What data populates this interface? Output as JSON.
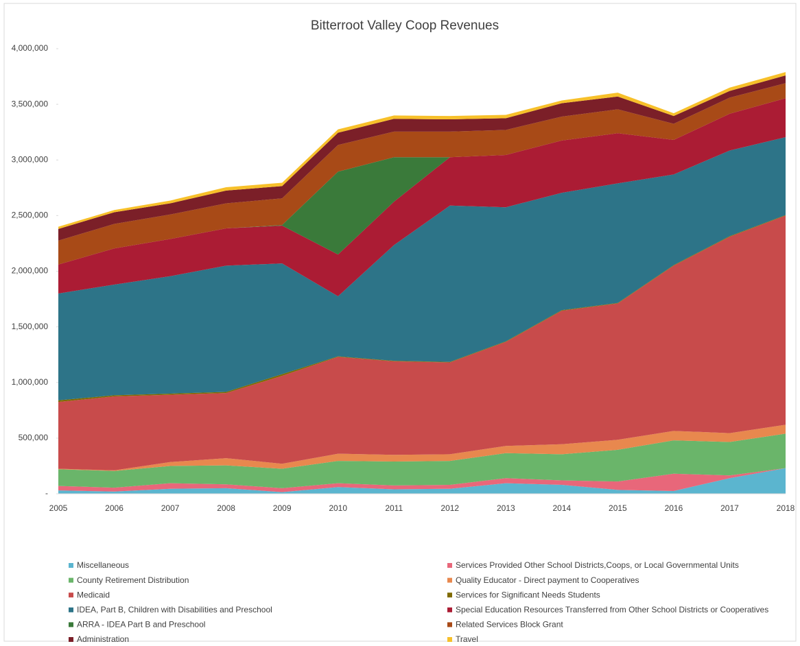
{
  "chart_data": {
    "type": "stacked_area",
    "title": "Bitterroot Valley Coop Revenues",
    "categories": [
      "2005",
      "2006",
      "2007",
      "2008",
      "2009",
      "2010",
      "2011",
      "2012",
      "2013",
      "2014",
      "2015",
      "2016",
      "2017",
      "2018"
    ],
    "ylim": [
      0,
      4000000
    ],
    "yticks": [
      {
        "value": 0,
        "label": "-"
      },
      {
        "value": 500000,
        "label": "500,000"
      },
      {
        "value": 1000000,
        "label": "1,000,000"
      },
      {
        "value": 1500000,
        "label": "1,500,000"
      },
      {
        "value": 2000000,
        "label": "2,000,000"
      },
      {
        "value": 2500000,
        "label": "2,500,000"
      },
      {
        "value": 3000000,
        "label": "3,000,000"
      },
      {
        "value": 3500000,
        "label": "3,500,000"
      },
      {
        "value": 4000000,
        "label": "4,000,000"
      }
    ],
    "legend": "bottom",
    "series": [
      {
        "name": "Miscellaneous",
        "color": "#5bb5cf",
        "values": [
          30000,
          20000,
          45000,
          50000,
          15000,
          60000,
          40000,
          45000,
          95000,
          80000,
          35000,
          25000,
          140000,
          230000
        ]
      },
      {
        "name": "Services Provided Other School Districts,Coops, or Local Governmental Units",
        "color": "#e8677a",
        "values": [
          40000,
          35000,
          50000,
          35000,
          35000,
          35000,
          35000,
          35000,
          45000,
          40000,
          75000,
          155000,
          25000,
          0
        ]
      },
      {
        "name": "County Retirement Distribution",
        "color": "#6ab56a",
        "values": [
          150000,
          150000,
          155000,
          170000,
          175000,
          200000,
          215000,
          215000,
          225000,
          235000,
          285000,
          300000,
          300000,
          310000
        ]
      },
      {
        "name": "Quality Educator  - Direct payment to Cooperatives",
        "color": "#e8884e",
        "values": [
          5000,
          5000,
          35000,
          65000,
          45000,
          65000,
          60000,
          60000,
          65000,
          90000,
          90000,
          85000,
          80000,
          80000
        ]
      },
      {
        "name": "Medicaid",
        "color": "#c84b4b",
        "values": [
          600000,
          665000,
          605000,
          585000,
          790000,
          870000,
          840000,
          825000,
          935000,
          1200000,
          1225000,
          1485000,
          1765000,
          1880000
        ]
      },
      {
        "name": "Services for Significant Needs Students",
        "color": "#7f6a00",
        "values": [
          15000,
          10000,
          10000,
          10000,
          15000,
          5000,
          5000,
          5000,
          5000,
          5000,
          5000,
          5000,
          5000,
          5000
        ]
      },
      {
        "name": "IDEA, Part B, Children with Disabilities and Preschool",
        "color": "#2d7488",
        "values": [
          960000,
          995000,
          1055000,
          1135000,
          995000,
          540000,
          1040000,
          1405000,
          1205000,
          1055000,
          1075000,
          815000,
          770000,
          700000
        ]
      },
      {
        "name": "Special Education Resources Transferred from Other School Districts or Cooperatives",
        "color": "#ab1c34",
        "values": [
          260000,
          325000,
          335000,
          335000,
          340000,
          375000,
          390000,
          435000,
          470000,
          470000,
          450000,
          310000,
          330000,
          350000
        ]
      },
      {
        "name": "ARRA - IDEA Part B and Preschool",
        "color": "#3a7a3a",
        "values": [
          0,
          0,
          0,
          0,
          5000,
          745000,
          400000,
          0,
          0,
          0,
          0,
          0,
          0,
          0
        ]
      },
      {
        "name": "Related Services Block Grant",
        "color": "#a84a17",
        "values": [
          215000,
          220000,
          220000,
          225000,
          240000,
          240000,
          230000,
          230000,
          225000,
          215000,
          215000,
          145000,
          145000,
          135000
        ]
      },
      {
        "name": "Administration",
        "color": "#7b1f28",
        "values": [
          105000,
          105000,
          100000,
          115000,
          110000,
          110000,
          115000,
          110000,
          105000,
          120000,
          115000,
          70000,
          60000,
          70000
        ]
      },
      {
        "name": "Travel",
        "color": "#f7c02a",
        "values": [
          20000,
          20000,
          25000,
          30000,
          30000,
          30000,
          30000,
          30000,
          30000,
          25000,
          35000,
          25000,
          30000,
          30000
        ]
      }
    ]
  }
}
